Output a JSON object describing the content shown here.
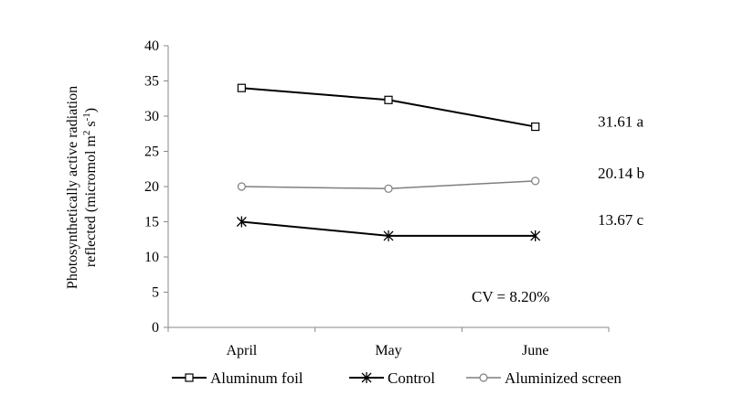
{
  "chart_data": {
    "type": "line",
    "categories": [
      "April",
      "May",
      "June"
    ],
    "ylabel_line1": "Photosynthetically  active radiation",
    "ylabel_line2_prefix": "reflected (micromol m",
    "ylabel_sup1": "2",
    "ylabel_mid": " s",
    "ylabel_sup2": "-1",
    "ylabel_suffix": ")",
    "ylim": [
      0,
      40
    ],
    "yticks": [
      0,
      5,
      10,
      15,
      20,
      25,
      30,
      35,
      40
    ],
    "grid": false,
    "legend_position": "bottom",
    "series": [
      {
        "name": "Aluminum  foil",
        "values": [
          34.0,
          32.3,
          28.5
        ],
        "marker": "square",
        "color": "#000000",
        "end_label": "31.61  a"
      },
      {
        "name": "Control",
        "values": [
          15.0,
          13.0,
          13.0
        ],
        "marker": "asterisk",
        "color": "#000000",
        "end_label": "13.67  c"
      },
      {
        "name": "Aluminized  screen",
        "values": [
          20.0,
          19.7,
          20.8
        ],
        "marker": "circle",
        "color": "#7f7f7f",
        "end_label": "20.14  b"
      }
    ],
    "annotation": "CV = 8.20%"
  }
}
